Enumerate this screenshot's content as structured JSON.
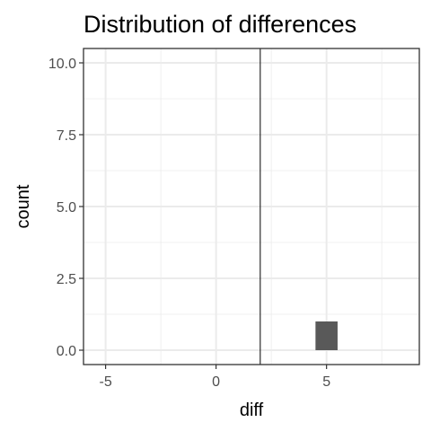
{
  "chart_data": {
    "type": "bar",
    "title": "Distribution of differences",
    "xlabel": "diff",
    "ylabel": "count",
    "xlim": [
      -6,
      9.2
    ],
    "ylim": [
      -0.5,
      10.5
    ],
    "x_ticks": [
      {
        "value": -5,
        "label": "-5"
      },
      {
        "value": 0,
        "label": "0"
      },
      {
        "value": 5,
        "label": "5"
      }
    ],
    "y_ticks": [
      {
        "value": 0,
        "label": "0.0"
      },
      {
        "value": 2.5,
        "label": "2.5"
      },
      {
        "value": 5,
        "label": "5.0"
      },
      {
        "value": 7.5,
        "label": "7.5"
      },
      {
        "value": 10,
        "label": "10.0"
      }
    ],
    "bins": [
      {
        "x_start": 4.5,
        "x_end": 5.5,
        "count": 1
      }
    ],
    "reference_line": {
      "x": 2.0,
      "color": "#000000"
    },
    "grid": true,
    "bar_color": "#595959",
    "grid_color": "#ebebeb"
  }
}
